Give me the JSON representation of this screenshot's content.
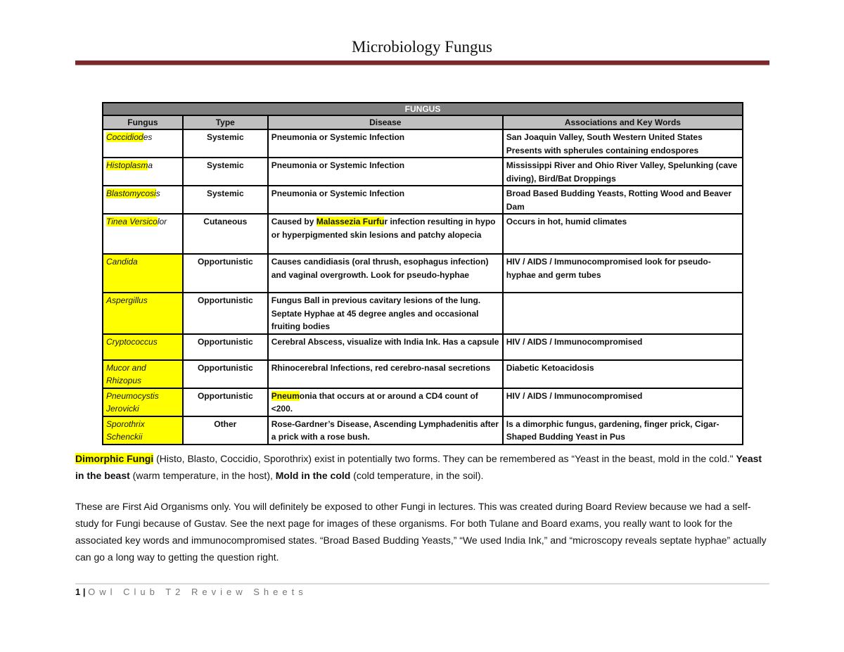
{
  "header": {
    "title": "Microbiology Fungus"
  },
  "table": {
    "caption": "FUNGUS",
    "columns": [
      "Fungus",
      "Type",
      "Disease",
      "Associations and Key Words"
    ],
    "rows": [
      {
        "fungus_hl": "Coccidiod",
        "fungus_rest": "es",
        "type": "Systemic",
        "disease": "Pneumonia or Systemic Infection",
        "assoc": "San Joaquin Valley, South Western United States Presents with spherules containing endospores"
      },
      {
        "fungus_hl": "Histoplasm",
        "fungus_rest": "a",
        "type": "Systemic",
        "disease": "Pneumonia or Systemic Infection",
        "assoc": "Mississippi River and Ohio River Valley, Spelunking (cave diving), Bird/Bat Droppings"
      },
      {
        "fungus_hl": "Blastomycosi",
        "fungus_rest": "s",
        "type": "Systemic",
        "disease": "Pneumonia or Systemic Infection",
        "assoc": "Broad Based Budding Yeasts, Rotting Wood and Beaver Dam"
      },
      {
        "fungus_hl": "Tinea Versico",
        "fungus_rest": "lor",
        "type": "Cutaneous",
        "disease_pre": "Caused by ",
        "disease_hl": "Malassezia Furfu",
        "disease_post": "r infection resulting in hypo or hyperpigmented skin lesions and patchy alopecia",
        "assoc": "Occurs in hot, humid climates"
      },
      {
        "fungus": "Candida",
        "type": "Opportunistic",
        "disease": "Causes candidiasis (oral thrush, esophagus infection) and vaginal overgrowth. Look for pseudo-hyphae",
        "assoc": "HIV / AIDS / Immunocompromised look for pseudo-hyphae and germ tubes"
      },
      {
        "fungus": "Aspergillus",
        "type": "Opportunistic",
        "disease": "Fungus Ball in previous cavitary lesions of the lung. Septate Hyphae at 45 degree angles and occasional fruiting bodies",
        "assoc": ""
      },
      {
        "fungus": "Cryptococcus",
        "type": "Opportunistic",
        "disease": "Cerebral Abscess, visualize with India Ink. Has a capsule",
        "assoc": "HIV / AIDS / Immunocompromised"
      },
      {
        "fungus": "Mucor and Rhizopus",
        "type": "Opportunistic",
        "disease": "Rhinocerebral Infections, red cerebro-nasal secretions",
        "assoc": "Diabetic Ketoacidosis"
      },
      {
        "fungus": "Pneumocystis Jerovicki",
        "type": "Opportunistic",
        "disease_hl": "Pneum",
        "disease_post": "onia that occurs at or around a CD4 count of <200.",
        "assoc": "HIV / AIDS / Immunocompromised"
      },
      {
        "fungus": "Sporothrix Schenckii",
        "type": "Other",
        "disease": "Rose-Gardner’s Disease, Ascending Lymphadenitis after a prick with a rose bush.",
        "assoc": "Is a dimorphic fungus, gardening, finger prick, Cigar-Shaped Budding Yeast in Pus"
      }
    ]
  },
  "dimorphic": {
    "term": "Dimorphic Fungi",
    "text1": " (Histo, Blasto, Coccidio, Sporothrix) exist in potentially two forms. They can be remembered as “Yeast in the beast, mold in the cold.\" ",
    "yeast": "Yeast in the beast",
    "text2": " (warm temperature, in the host), ",
    "mold": "Mold in the cold",
    "text3": " (cold temperature, in the soil)."
  },
  "notes": "These are First Aid Organisms only. You will definitely be exposed to other Fungi in lectures. This was created during Board Review because we had a self-study for Fungi because of Gustav. See the next page for images of these organisms. For both Tulane and Board exams, you really want to look for the associated key words and immunocompromised states. “Broad Based Budding Yeasts,”  “We used India Ink,” and “microscopy reveals septate hyphae” actually can go a long way to getting the question right.",
  "footer": {
    "page": "1",
    "sep": "|",
    "text": "Owl Club T2 Review Sheets"
  },
  "colors": {
    "accent_bar": "#7a2a2a",
    "highlight": "#ffff00",
    "caption_bg": "#7f7f7f",
    "header_bg": "#c0c0c0"
  }
}
